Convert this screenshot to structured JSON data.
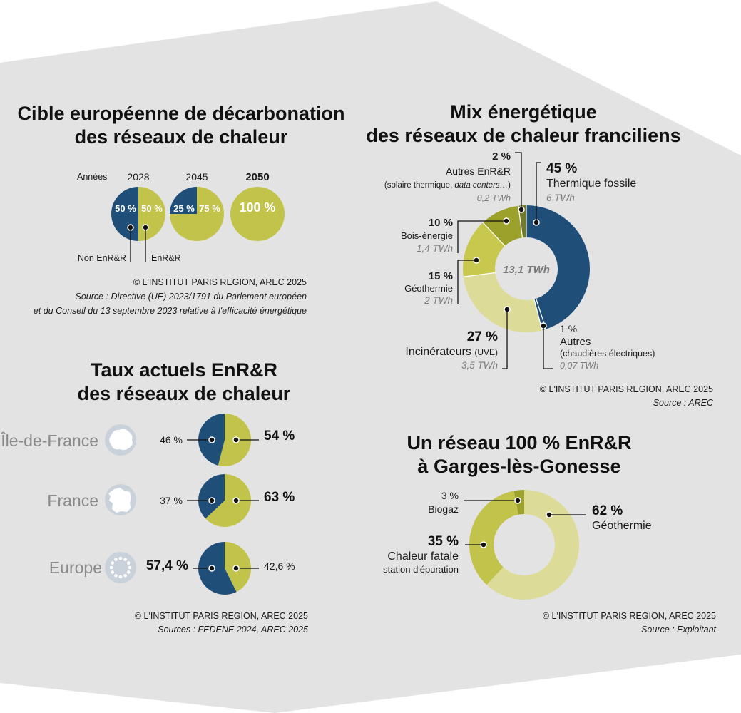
{
  "colors": {
    "dark_blue": "#1f4e79",
    "olive": "#c2c34a",
    "light_olive": "#dcdc98",
    "mid_olive": "#c8c74e",
    "dark_olive": "#9ba12a",
    "deep_olive": "#6f7a2a",
    "background": "#e3e3e3",
    "gray_label": "#8a8a8a"
  },
  "panel1": {
    "title_line1": "Cible européenne de décarbonation",
    "title_line2": "des réseaux de chaleur",
    "years_label": "Années",
    "legend_non": "Non EnR&R",
    "legend_enr": "EnR&R",
    "credit": "© L'INSTITUT PARIS REGION, AREC 2025",
    "source_line1": "Source : Directive (UE) 2023/1791 du Parlement européen",
    "source_line2": "et du Conseil du 13 septembre 2023 relative à l'efficacité énergétique"
  },
  "panel2": {
    "title_line1": "Mix énergétique",
    "title_line2": "des réseaux de chaleur franciliens",
    "center_label": "13,1 TWh",
    "credit": "© L'INSTITUT PARIS REGION, AREC 2025",
    "source": "Source : AREC",
    "labels": {
      "thermique": {
        "pct": "45 %",
        "name": "Thermique fossile",
        "twh": "6 TWh"
      },
      "autres_enr": {
        "pct": "2 %",
        "name": "Autres EnR&R",
        "detail_a": "(solaire thermique, ",
        "detail_b": "data centers…",
        "detail_c": ")",
        "twh": "0,2 TWh"
      },
      "bois": {
        "pct": "10 %",
        "name": "Bois-énergie",
        "twh": "1,4 TWh"
      },
      "geo": {
        "pct": "15 %",
        "name": "Géothermie",
        "twh": "2 TWh"
      },
      "incin": {
        "pct": "27 %",
        "name": "Incinérateurs",
        "name_suffix": "(UVE)",
        "twh": "3,5 TWh"
      },
      "autres": {
        "pct": "1 %",
        "name": "Autres",
        "detail": "(chaudières électriques)",
        "twh": "0,07 TWh"
      }
    }
  },
  "panel3": {
    "title_line1": "Taux actuels EnR&R",
    "title_line2": "des réseaux de chaleur",
    "credit": "© L'INSTITUT PARIS REGION, AREC 2025",
    "source": "Sources : FEDENE 2024, AREC 2025",
    "rows": [
      {
        "region": "Île-de-France",
        "non_label": "46 %",
        "enr_label": "54 %"
      },
      {
        "region": "France",
        "non_label": "37 %",
        "enr_label": "63 %"
      },
      {
        "region": "Europe",
        "non_label": "57,4 %",
        "enr_label": "42,6 %"
      }
    ]
  },
  "panel4": {
    "title_line1": "Un réseau 100 % EnR&R",
    "title_line2": "à Garges-lès-Gonesse",
    "credit": "© L'INSTITUT PARIS REGION, AREC 2025",
    "source": "Source : Exploitant",
    "labels": {
      "geo": {
        "pct": "62 %",
        "name": "Géothermie"
      },
      "chaleur": {
        "pct": "35 %",
        "name": "Chaleur fatale",
        "detail": "station d'épuration"
      },
      "biogaz": {
        "pct": "3 %",
        "name": "Biogaz"
      }
    }
  },
  "chart_data": [
    {
      "type": "pie",
      "title": "Cible européenne de décarbonation des réseaux de chaleur",
      "categories": [
        "2028",
        "2045",
        "2050"
      ],
      "series": [
        {
          "name": "Non EnR&R",
          "values": [
            50,
            25,
            0
          ]
        },
        {
          "name": "EnR&R",
          "values": [
            50,
            75,
            100
          ]
        }
      ],
      "slice_labels": [
        [
          "50 %",
          "50 %"
        ],
        [
          "25 %",
          "75 %"
        ],
        [
          "100 %"
        ]
      ]
    },
    {
      "type": "pie",
      "title": "Mix énergétique des réseaux de chaleur franciliens",
      "donut": true,
      "total_label": "13,1 TWh",
      "categories": [
        "Thermique fossile",
        "Autres",
        "Incinérateurs (UVE)",
        "Géothermie",
        "Bois-énergie",
        "Autres EnR&R"
      ],
      "values": [
        45,
        1,
        27,
        15,
        10,
        2
      ],
      "twh": [
        6,
        0.07,
        3.5,
        2,
        1.4,
        0.2
      ]
    },
    {
      "type": "pie",
      "title": "Taux actuels EnR&R des réseaux de chaleur",
      "categories": [
        "Île-de-France",
        "France",
        "Europe"
      ],
      "series": [
        {
          "name": "Non EnR&R",
          "values": [
            46,
            37,
            57.4
          ]
        },
        {
          "name": "EnR&R",
          "values": [
            54,
            63,
            42.6
          ]
        }
      ]
    },
    {
      "type": "pie",
      "title": "Un réseau 100 % EnR&R à Garges-lès-Gonesse",
      "donut": true,
      "categories": [
        "Géothermie",
        "Chaleur fatale station d'épuration",
        "Biogaz"
      ],
      "values": [
        62,
        35,
        3
      ]
    }
  ]
}
